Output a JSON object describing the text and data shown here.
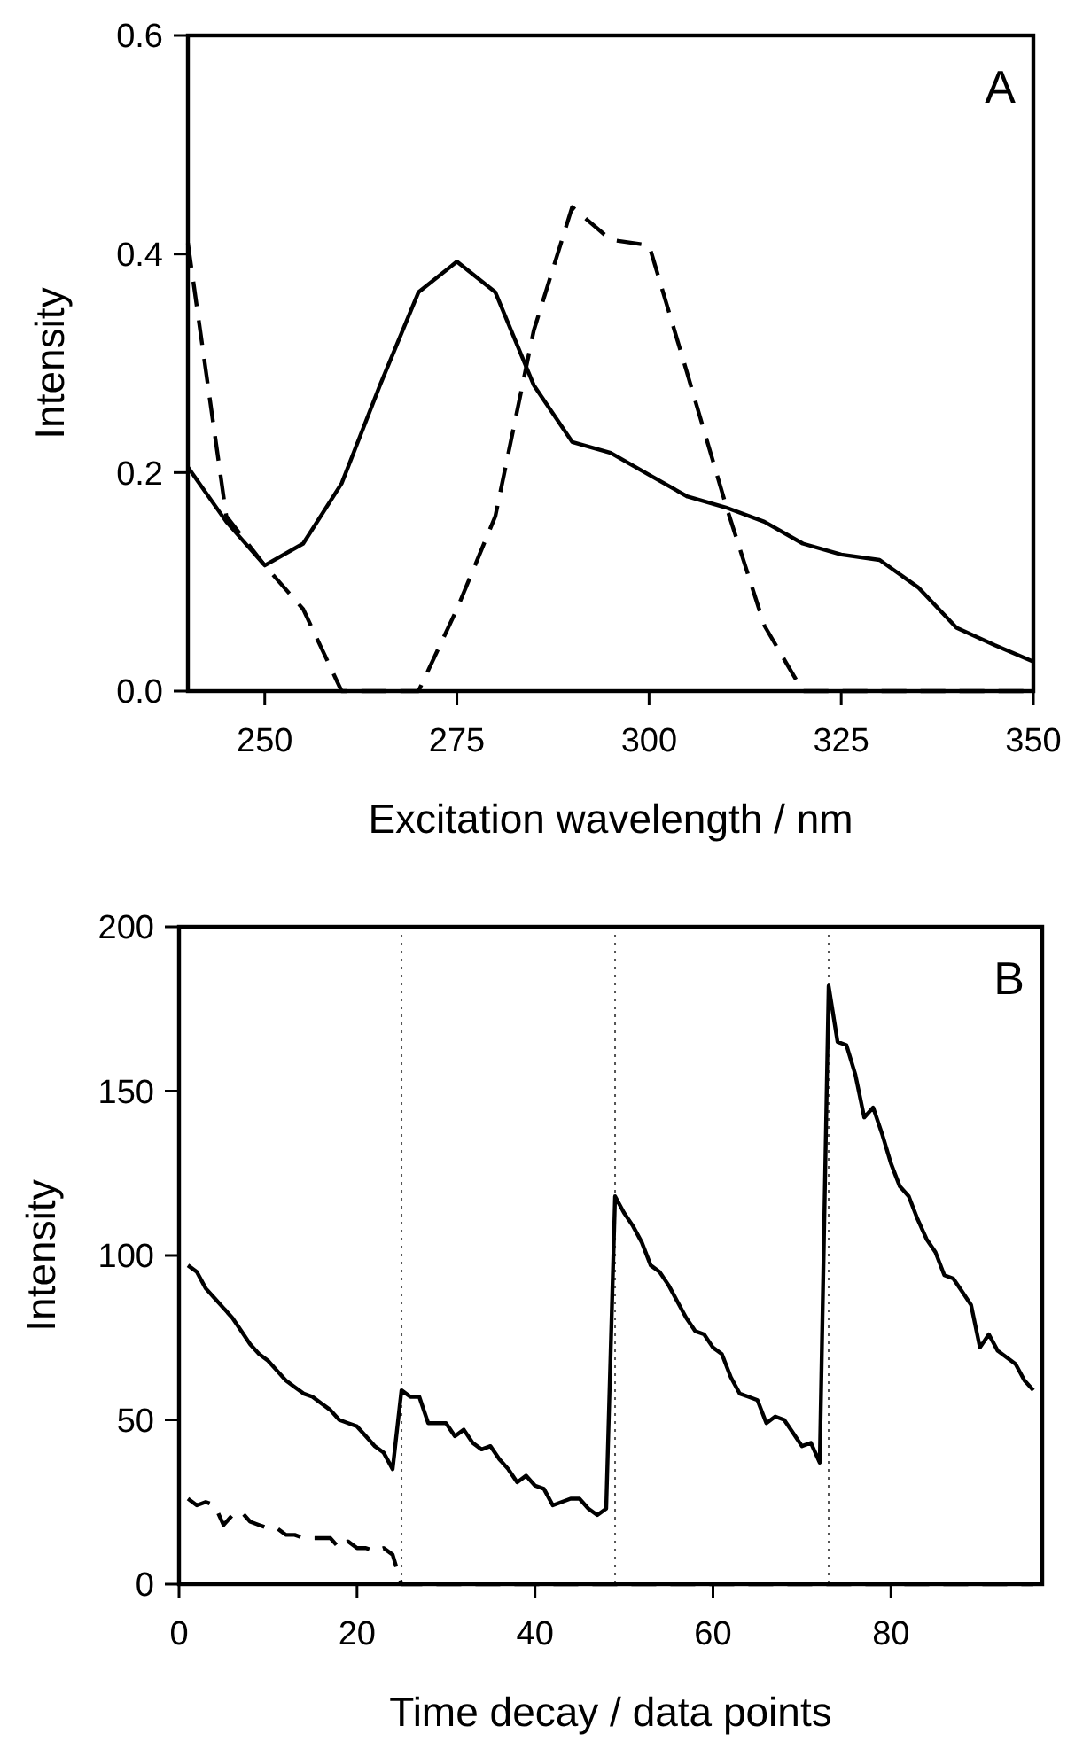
{
  "chart_data": [
    {
      "type": "line",
      "xlabel": "Excitation wavelength / nm",
      "ylabel": "Intensity",
      "annotations": [
        "A"
      ],
      "xlim": [
        240,
        350
      ],
      "xticks": [
        250,
        275,
        300,
        325,
        350
      ],
      "ylim": [
        0,
        0.6
      ],
      "yticks": [
        {
          "value": 0,
          "label": "0.0"
        },
        0.2,
        0.4,
        0.6
      ],
      "x": [
        240,
        245,
        250,
        255,
        260,
        265,
        270,
        275,
        280,
        285,
        290,
        295,
        300,
        305,
        310,
        315,
        320,
        325,
        330,
        335,
        340,
        345,
        350
      ],
      "series": [
        {
          "color": "#000000",
          "line_style": "solid",
          "values": [
            0.205,
            0.155,
            0.115,
            0.135,
            0.19,
            0.28,
            0.365,
            0.393,
            0.365,
            0.28,
            0.228,
            0.218,
            0.198,
            0.178,
            0.168,
            0.155,
            0.135,
            0.125,
            0.12,
            0.095,
            0.058,
            0.042,
            0.027
          ]
        },
        {
          "color": "#000000",
          "line_style": "dashed",
          "values": [
            0.41,
            0.16,
            0.115,
            0.075,
            0,
            0,
            0,
            0.075,
            0.16,
            0.33,
            0.443,
            0.413,
            0.408,
            0.29,
            0.17,
            0.06,
            0,
            0,
            0,
            0,
            0,
            0,
            0
          ]
        }
      ]
    },
    {
      "type": "line",
      "xlabel": "Time decay / data points",
      "ylabel": "Intensity",
      "annotations": [
        "B"
      ],
      "xlim": [
        0,
        97
      ],
      "xticks": [
        0,
        20,
        40,
        60,
        80
      ],
      "ylim": [
        0,
        200
      ],
      "yticks": [
        0,
        50,
        100,
        150,
        200
      ],
      "ref_lines": [
        {
          "axis": "x",
          "value": 25,
          "color": "#555555",
          "line_style": "dotted"
        },
        {
          "axis": "x",
          "value": 49,
          "color": "#555555",
          "line_style": "dotted"
        },
        {
          "axis": "x",
          "value": 73,
          "color": "#555555",
          "line_style": "dotted"
        }
      ],
      "x": [
        1,
        2,
        3,
        4,
        5,
        6,
        7,
        8,
        9,
        10,
        11,
        12,
        13,
        14,
        15,
        16,
        17,
        18,
        19,
        20,
        21,
        22,
        23,
        24,
        25,
        26,
        27,
        28,
        29,
        30,
        31,
        32,
        33,
        34,
        35,
        36,
        37,
        38,
        39,
        40,
        41,
        42,
        43,
        44,
        45,
        46,
        47,
        48,
        49,
        50,
        51,
        52,
        53,
        54,
        55,
        56,
        57,
        58,
        59,
        60,
        61,
        62,
        63,
        64,
        65,
        66,
        67,
        68,
        69,
        70,
        71,
        72,
        73,
        74,
        75,
        76,
        77,
        78,
        79,
        80,
        81,
        82,
        83,
        84,
        85,
        86,
        87,
        88,
        89,
        90,
        91,
        92,
        93,
        94,
        95,
        96
      ],
      "series": [
        {
          "color": "#000000",
          "line_style": "solid",
          "values": [
            97,
            95,
            90,
            87,
            84,
            81,
            77,
            73,
            70,
            68,
            65,
            62,
            60,
            58,
            57,
            55,
            53,
            50,
            49,
            48,
            45,
            42,
            40,
            35,
            59,
            57,
            57,
            49,
            49,
            49,
            45,
            47,
            43,
            41,
            42,
            38,
            35,
            31,
            33,
            30,
            29,
            24,
            25,
            26,
            26,
            23,
            21,
            23,
            118,
            113,
            109,
            104,
            97,
            95,
            91,
            86,
            81,
            77,
            76,
            72,
            70,
            63,
            58,
            57,
            56,
            49,
            51,
            50,
            46,
            42,
            43,
            37,
            182,
            165,
            164,
            155,
            142,
            145,
            137,
            128,
            121,
            118,
            111,
            105,
            101,
            94,
            93,
            89,
            85,
            72,
            76,
            71,
            69,
            67,
            62,
            59
          ]
        },
        {
          "color": "#000000",
          "line_style": "dashed",
          "values": [
            26,
            24,
            25,
            24,
            18,
            21,
            22,
            19,
            18,
            17,
            17,
            15,
            15,
            14,
            14,
            14,
            14,
            11,
            13,
            11,
            11,
            10,
            11,
            9,
            0,
            0,
            0,
            0,
            0,
            0,
            0,
            0,
            0,
            0,
            0,
            0,
            0,
            0,
            0,
            0,
            0,
            0,
            0,
            0,
            0,
            0,
            0,
            0,
            0,
            0,
            0,
            0,
            0,
            0,
            0,
            0,
            0,
            0,
            0,
            0,
            0,
            0,
            0,
            0,
            0,
            0,
            0,
            0,
            0,
            0,
            0,
            0,
            0,
            0,
            0,
            0,
            0,
            0,
            0,
            0,
            0,
            0,
            0,
            0,
            0,
            0,
            0,
            0,
            0,
            0,
            0,
            0,
            0,
            0,
            0,
            0
          ]
        }
      ]
    }
  ]
}
